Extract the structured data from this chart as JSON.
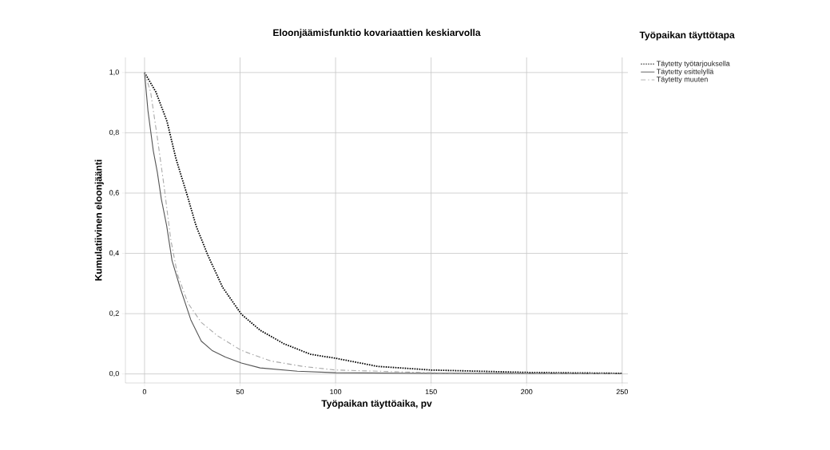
{
  "chart_data": {
    "type": "line",
    "title": "Eloonjäämisfunktio kovariaattien keskiarvolla",
    "xlabel": "Työpaikan täyttöaika, pv",
    "ylabel": "Kumulatiivinen eloonjäänti",
    "legend_title": "Työpaikan täyttötapa",
    "legend": "right",
    "grid": true,
    "xlim": [
      -10,
      253
    ],
    "ylim": [
      -0.03,
      1.05
    ],
    "xticks": [
      0,
      50,
      100,
      150,
      200,
      250
    ],
    "yticks": [
      {
        "value": 0,
        "label": "0,0"
      },
      {
        "value": 0.2,
        "label": "0,2"
      },
      {
        "value": 0.4,
        "label": "0,4"
      },
      {
        "value": 0.6,
        "label": "0,6"
      },
      {
        "value": 0.8,
        "label": "0,8"
      },
      {
        "value": 1,
        "label": "1,0"
      }
    ],
    "series": [
      {
        "name": "Täytetty työtarjouksella",
        "color": "#000000",
        "line_style": "dotted",
        "x": [
          0,
          6,
          11.8,
          16.5,
          22.1,
          27,
          33.2,
          40.9,
          50.7,
          60.5,
          73,
          87,
          100,
          122,
          150,
          200,
          250
        ],
        "values": [
          1.0,
          0.935,
          0.837,
          0.713,
          0.598,
          0.491,
          0.393,
          0.287,
          0.198,
          0.145,
          0.1,
          0.065,
          0.052,
          0.025,
          0.013,
          0.005,
          0.002
        ]
      },
      {
        "name": "Täytetty esittelyllä",
        "color": "#555555",
        "line_style": "solid",
        "x": [
          0,
          1.8,
          4.6,
          6.7,
          8.8,
          11.6,
          14.4,
          18.6,
          24.2,
          29.7,
          35.3,
          42.3,
          50.7,
          60.5,
          80,
          100,
          150,
          250
        ],
        "values": [
          1.0,
          0.873,
          0.74,
          0.669,
          0.58,
          0.491,
          0.376,
          0.287,
          0.18,
          0.109,
          0.078,
          0.056,
          0.036,
          0.02,
          0.009,
          0.004,
          0.002,
          0.001
        ]
      },
      {
        "name": "Täytetty muuten",
        "color": "#aaaaaa",
        "line_style": "dashed",
        "x": [
          0,
          3.2,
          6.7,
          10.2,
          13.7,
          17.2,
          22.8,
          29.7,
          38.1,
          50.7,
          66,
          82.8,
          100,
          150,
          250
        ],
        "values": [
          1.0,
          0.935,
          0.784,
          0.624,
          0.447,
          0.331,
          0.234,
          0.171,
          0.127,
          0.078,
          0.043,
          0.025,
          0.013,
          0.004,
          0.001
        ]
      }
    ]
  }
}
